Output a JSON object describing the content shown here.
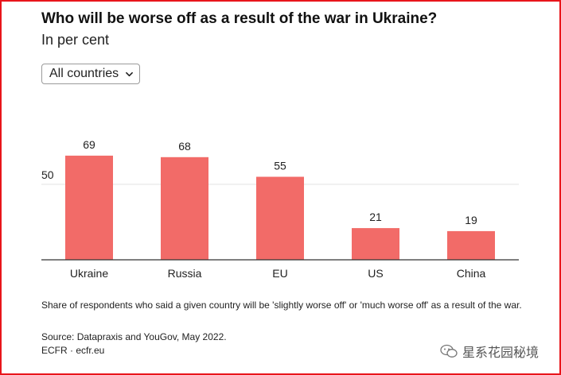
{
  "header": {
    "title": "Who will be worse off as a result of the war in Ukraine?",
    "subtitle": "In per cent"
  },
  "filter": {
    "selected": "All countries",
    "icon": "chevron-down-icon"
  },
  "chart_data": {
    "type": "bar",
    "title": "Who will be worse off as a result of the war in Ukraine?",
    "subtitle": "In per cent",
    "categories": [
      "Ukraine",
      "Russia",
      "EU",
      "US",
      "China"
    ],
    "values": [
      69,
      68,
      55,
      21,
      19
    ],
    "data_labels": [
      "69",
      "68",
      "55",
      "21",
      "19"
    ],
    "ytick_values": [
      50
    ],
    "ytick_labels": [
      "50"
    ],
    "ylim": [
      0,
      100
    ],
    "xlabel": "",
    "ylabel": "",
    "grid": true,
    "bar_color": "#f26b68"
  },
  "footer": {
    "note": "Share of respondents who said a given country will be 'slightly worse off' or 'much worse off' as a result of the war.",
    "source": "Source: Datapraxis and YouGov, May 2022.",
    "credit": "ECFR · ecfr.eu"
  },
  "watermark": {
    "text": "星系花园秘境",
    "icon": "wechat-icon"
  },
  "colors": {
    "frame": "#e8151b",
    "bar": "#f26b68",
    "axis": "#333333",
    "grid": "#e3e3e3"
  }
}
